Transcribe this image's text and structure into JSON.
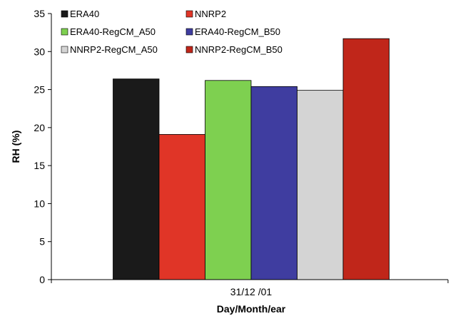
{
  "chart_data": {
    "type": "bar",
    "categories": [
      "31/12 /01"
    ],
    "series": [
      {
        "name": "ERA40",
        "values": [
          26.4
        ],
        "color": "#1a1a1a"
      },
      {
        "name": "NNRP2",
        "values": [
          19.1
        ],
        "color": "#e03527"
      },
      {
        "name": "ERA40-RegCM_A50",
        "values": [
          26.2
        ],
        "color": "#7ed050"
      },
      {
        "name": "ERA40-RegCM_B50",
        "values": [
          25.4
        ],
        "color": "#3f3da0"
      },
      {
        "name": "NNRP2-RegCM_A50",
        "values": [
          24.9
        ],
        "color": "#d4d4d4"
      },
      {
        "name": "NNRP2-RegCM_B50",
        "values": [
          31.7
        ],
        "color": "#c0261a"
      }
    ],
    "xlabel": "Day/Month/ear",
    "ylabel": "RH (%)",
    "ylim": [
      0,
      35
    ],
    "yticks": [
      "0",
      "5",
      "10",
      "15",
      "20",
      "25",
      "30",
      "35"
    ],
    "grid": false,
    "legend": "top-left"
  }
}
